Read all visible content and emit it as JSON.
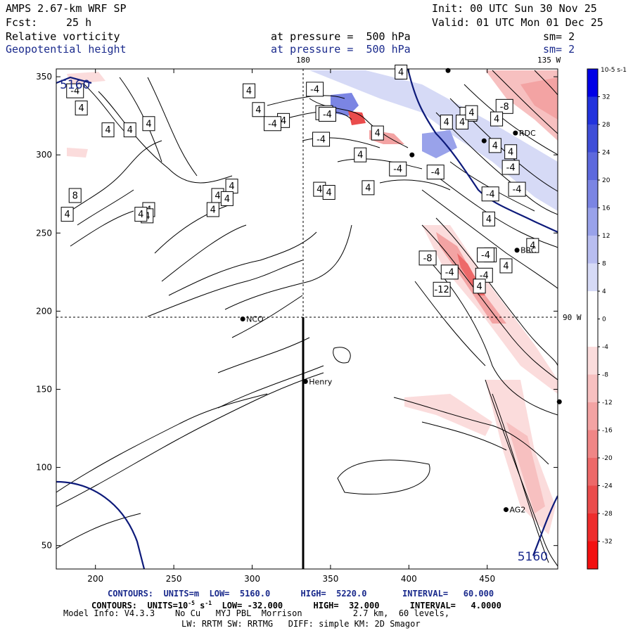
{
  "header": {
    "model": "AMPS 2.67-km WRF SP",
    "init": "Init: 00 UTC Sun 30 Nov 25",
    "fcst_label": "Fcst:",
    "fcst_value": "25 h",
    "valid": "Valid: 01 UTC Mon 01 Dec 25",
    "field1": "Relative vorticity",
    "field1_level": "at pressure =  500 hPa",
    "field1_sm": "sm= 2",
    "field2": "Geopotential height",
    "field2_level": "at pressure =  500 hPa",
    "field2_sm": "sm= 2",
    "top_lon_180": "180",
    "top_lon_135": "135 W",
    "right_lon_90": "90 W"
  },
  "footer": {
    "contours1": "CONTOURS:  UNITS=m  LOW=  5160.0      HIGH=  5220.0       INTERVAL=   60.000",
    "contours2_a": "CONTOURS:  UNITS=10",
    "contours2_exp": "-5",
    "contours2_b": " s",
    "contours2_exp2": "-1",
    "contours2_c": "  LOW= -32.000      HIGH=  32.000      INTERVAL=   4.0000",
    "model_info": "Model Info: V4.3.3    No Cu   MYJ PBL  Morrison          2.7 km,  60 levels,",
    "model_info2": "LW: RRTM SW: RRTMG   DIFF: simple KM: 2D Smagor"
  },
  "stations": [
    {
      "name": "RDC",
      "x": 468,
      "y": 314
    },
    {
      "name": "BRC",
      "x": 469,
      "y": 239
    },
    {
      "name": "NCO",
      "x": 294,
      "y": 195
    },
    {
      "name": "Henry",
      "x": 334,
      "y": 155
    },
    {
      "name": "AG2",
      "x": 462,
      "y": 73
    }
  ],
  "unlabeled_stations": [
    {
      "x": 425,
      "y": 354
    },
    {
      "x": 402,
      "y": 300
    },
    {
      "x": 448,
      "y": 309
    },
    {
      "x": 496,
      "y": 142
    }
  ],
  "height_labels": [
    {
      "text": "5160",
      "x": 187,
      "y": 345
    },
    {
      "text": "5160",
      "x": 479,
      "y": 43
    }
  ],
  "chart_data": {
    "type": "heatmap",
    "title": "Relative vorticity and Geopotential height at 500 hPa",
    "xlabel": "",
    "ylabel": "",
    "xlim": [
      175,
      495
    ],
    "ylim": [
      35,
      355
    ],
    "x_ticks": [
      200,
      250,
      300,
      350,
      400,
      450
    ],
    "y_ticks": [
      50,
      100,
      150,
      200,
      250,
      300,
      350
    ],
    "colorbar": {
      "unit_label": "10-5 s-1",
      "levels": [
        36,
        32,
        28,
        24,
        20,
        16,
        12,
        8,
        4,
        0,
        -4,
        -8,
        -12,
        -16,
        -20,
        -24,
        -28,
        -32,
        -36
      ],
      "tick_labels": [
        "32",
        "28",
        "24",
        "20",
        "16",
        "12",
        "8",
        "4",
        "0",
        "-4",
        "-8",
        "-12",
        "-16",
        "-20",
        "-24",
        "-28",
        "-32"
      ],
      "colors": [
        "#0000e6",
        "#2233dd",
        "#3f4ed8",
        "#5d69dd",
        "#7b85e3",
        "#99a2ea",
        "#b8bdf0",
        "#d6daf6",
        "#ffffff",
        "#ffffff",
        "#fbdcdc",
        "#f7c0c0",
        "#f3a3a3",
        "#f08686",
        "#ed6969",
        "#ea4c4c",
        "#ee2c2c",
        "#f21010"
      ]
    },
    "contour_labels": [
      {
        "v": "4",
        "x": 191,
        "y": 330
      },
      {
        "v": "4",
        "x": 208,
        "y": 316
      },
      {
        "v": "4",
        "x": 222,
        "y": 316
      },
      {
        "v": "4",
        "x": 234,
        "y": 320
      },
      {
        "v": "-4",
        "x": 187,
        "y": 341
      },
      {
        "v": "4",
        "x": 298,
        "y": 341
      },
      {
        "v": "4",
        "x": 304,
        "y": 329
      },
      {
        "v": "4",
        "x": 320,
        "y": 322
      },
      {
        "v": "-4",
        "x": 313,
        "y": 320
      },
      {
        "v": "4",
        "x": 234,
        "y": 265
      },
      {
        "v": "4",
        "x": 287,
        "y": 280
      },
      {
        "v": "8",
        "x": 187,
        "y": 274
      },
      {
        "v": "4",
        "x": 182,
        "y": 262
      },
      {
        "v": "4",
        "x": 233,
        "y": 261
      },
      {
        "v": "4",
        "x": 278,
        "y": 274
      },
      {
        "v": "4",
        "x": 275,
        "y": 265
      },
      {
        "v": "4",
        "x": 284,
        "y": 272
      },
      {
        "v": "4",
        "x": 229,
        "y": 262
      },
      {
        "v": "-4",
        "x": 340,
        "y": 342
      },
      {
        "v": "-4",
        "x": 346,
        "y": 327
      },
      {
        "v": "-4",
        "x": 344,
        "y": 310
      },
      {
        "v": "-4",
        "x": 348,
        "y": 326
      },
      {
        "v": "4",
        "x": 380,
        "y": 314
      },
      {
        "v": "4",
        "x": 395,
        "y": 353
      },
      {
        "v": "-4",
        "x": 438,
        "y": 326
      },
      {
        "v": "-8",
        "x": 461,
        "y": 331
      },
      {
        "v": "4",
        "x": 456,
        "y": 323
      },
      {
        "v": "-4",
        "x": 393,
        "y": 291
      },
      {
        "v": "-4",
        "x": 417,
        "y": 289
      },
      {
        "v": "-4",
        "x": 465,
        "y": 292
      },
      {
        "v": "-4",
        "x": 469,
        "y": 278
      },
      {
        "v": "4",
        "x": 343,
        "y": 278
      },
      {
        "v": "4",
        "x": 369,
        "y": 300
      },
      {
        "v": "4",
        "x": 349,
        "y": 276
      },
      {
        "v": "4",
        "x": 374,
        "y": 279
      },
      {
        "v": "4",
        "x": 424,
        "y": 321
      },
      {
        "v": "4",
        "x": 434,
        "y": 321
      },
      {
        "v": "4",
        "x": 440,
        "y": 327
      },
      {
        "v": "4",
        "x": 455,
        "y": 306
      },
      {
        "v": "4",
        "x": 465,
        "y": 302
      },
      {
        "v": "-4",
        "x": 452,
        "y": 275
      },
      {
        "v": "4",
        "x": 451,
        "y": 259
      },
      {
        "v": "-8",
        "x": 412,
        "y": 234
      },
      {
        "v": "-4",
        "x": 426,
        "y": 225
      },
      {
        "v": "-12",
        "x": 421,
        "y": 214
      },
      {
        "v": "-4",
        "x": 448,
        "y": 223
      },
      {
        "v": "4",
        "x": 452,
        "y": 236
      },
      {
        "v": "4",
        "x": 445,
        "y": 216
      },
      {
        "v": "4",
        "x": 462,
        "y": 229
      },
      {
        "v": "-4",
        "x": 449,
        "y": 236
      },
      {
        "v": "4",
        "x": 479,
        "y": 242
      }
    ]
  }
}
